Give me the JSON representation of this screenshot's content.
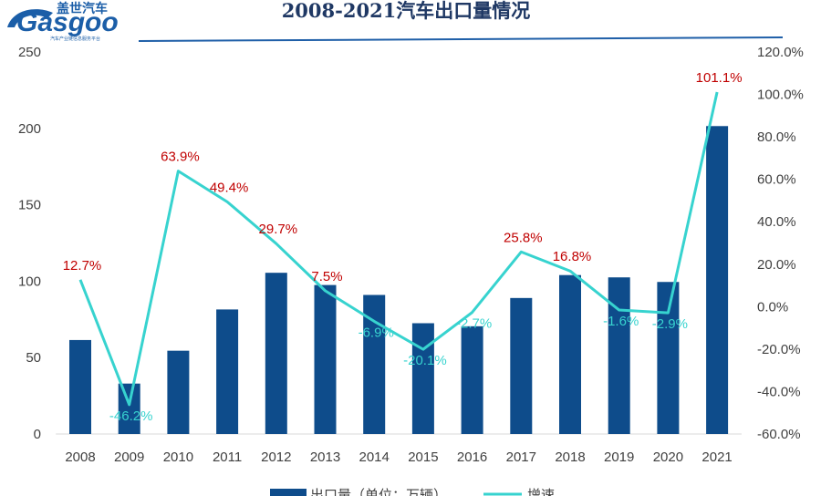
{
  "logo": {
    "brand": "Gasgoo",
    "chinese": "盖世汽车",
    "tagline": "汽车产业链信息服务平台"
  },
  "colors": {
    "bar": "#0e4c8b",
    "line": "#37d3cf",
    "label_positive": "#c00000",
    "label_negative": "#37d3cf",
    "title": "#1f3864"
  },
  "chart_data": {
    "type": "bar",
    "title": "2008-2021汽车出口量情况",
    "categories": [
      "2008",
      "2009",
      "2010",
      "2011",
      "2012",
      "2013",
      "2014",
      "2015",
      "2016",
      "2017",
      "2018",
      "2019",
      "2020",
      "2021"
    ],
    "y_left": {
      "min": 0,
      "max": 250,
      "ticks": [
        "0",
        "50",
        "100",
        "150",
        "200",
        "250"
      ]
    },
    "y_right": {
      "min": -60,
      "max": 120,
      "ticks": [
        "-60.0%",
        "-40.0%",
        "-20.0%",
        "0.0%",
        "20.0%",
        "40.0%",
        "60.0%",
        "80.0%",
        "100.0%",
        "120.0%"
      ]
    },
    "series": [
      {
        "name": "出口量（单位：万辆）",
        "type": "bar",
        "axis": "left",
        "values": [
          61.5,
          33,
          54.5,
          81.5,
          105.5,
          97.5,
          91,
          72.5,
          70.5,
          89,
          104,
          102.5,
          99.5,
          201.5
        ]
      },
      {
        "name": "增速",
        "type": "line",
        "axis": "right",
        "values": [
          12.7,
          -46.2,
          63.9,
          49.4,
          29.7,
          7.5,
          -6.9,
          -20.1,
          -2.7,
          25.8,
          16.8,
          -1.6,
          -2.9,
          101.1
        ],
        "labels": [
          "12.7%",
          "-46.2%",
          "63.9%",
          "49.4%",
          "29.7%",
          "7.5%",
          "-6.9%",
          "-20.1%",
          "-2.7%",
          "25.8%",
          "16.8%",
          "-1.6%",
          "-2.9%",
          "101.1%"
        ]
      }
    ],
    "legend_position": "bottom",
    "grid": false
  }
}
